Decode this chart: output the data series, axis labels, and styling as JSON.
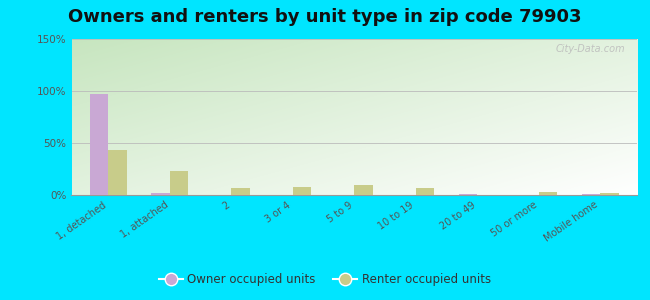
{
  "title": "Owners and renters by unit type in zip code 79903",
  "categories": [
    "1, detached",
    "1, attached",
    "2",
    "3 or 4",
    "5 to 9",
    "10 to 19",
    "20 to 49",
    "50 or more",
    "Mobile home"
  ],
  "owner_values": [
    97,
    2,
    0,
    0,
    0,
    0,
    1,
    0,
    1
  ],
  "renter_values": [
    43,
    23,
    7,
    8,
    10,
    7,
    0,
    3,
    2
  ],
  "owner_color": "#c9a8d4",
  "renter_color": "#c8cc8a",
  "ylim": [
    0,
    150
  ],
  "yticks": [
    0,
    50,
    100,
    150
  ],
  "ytick_labels": [
    "0%",
    "50%",
    "100%",
    "150%"
  ],
  "outer_bg": "#00e5ff",
  "legend_owner": "Owner occupied units",
  "legend_renter": "Renter occupied units",
  "watermark": "City-Data.com",
  "title_fontsize": 13,
  "bar_width": 0.3,
  "grad_top_left": "#c8e6c0",
  "grad_bottom_right": "#f0f8ee"
}
